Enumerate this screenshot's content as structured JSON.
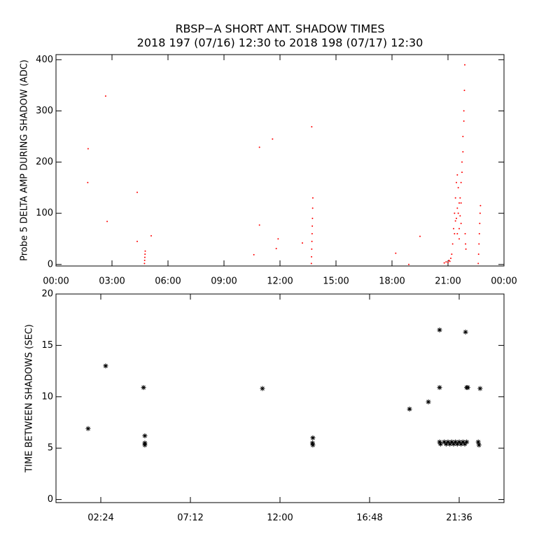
{
  "chart_data": [
    {
      "type": "scatter",
      "title": "RBSP−A SHORT ANT. SHADOW TIMES",
      "subtitle": "2018 197 (07/16) 12:30 to 2018 198 (07/17) 12:30",
      "y_label": "Probe 5 DELTA AMP DURING SHADOW (ADC)",
      "color": "#ff0000",
      "xlim": [
        0,
        24
      ],
      "ylim": [
        -3,
        410
      ],
      "xticks": [
        {
          "value": 0,
          "label": "00:00"
        },
        {
          "value": 3,
          "label": "03:00"
        },
        {
          "value": 6,
          "label": "06:00"
        },
        {
          "value": 9,
          "label": "09:00"
        },
        {
          "value": 12,
          "label": "12:00"
        },
        {
          "value": 15,
          "label": "15:00"
        },
        {
          "value": 18,
          "label": "18:00"
        },
        {
          "value": 21,
          "label": "21:00"
        },
        {
          "value": 24,
          "label": "00:00"
        }
      ],
      "yticks": [
        0,
        100,
        200,
        300,
        400
      ],
      "x": [
        1.72,
        1.7,
        2.66,
        2.74,
        4.35,
        4.35,
        5.1,
        10.6,
        10.9,
        10.9,
        11.6,
        11.9,
        11.8,
        13.2,
        13.7,
        18.2,
        18.9,
        19.5,
        4.74,
        4.75,
        4.76,
        4.77,
        4.78,
        13.68,
        13.69,
        13.7,
        13.71,
        13.72,
        13.73,
        13.74,
        13.75,
        13.76,
        20.8,
        20.9,
        21.0,
        21.05,
        21.1,
        21.15,
        21.2,
        21.25,
        21.3,
        21.35,
        21.4,
        21.45,
        21.5,
        21.55,
        21.6,
        21.65,
        21.7,
        21.45,
        21.5,
        21.55,
        21.6,
        21.65,
        21.7,
        21.75,
        21.8,
        21.85,
        21.88,
        21.9,
        21.8,
        21.85,
        21.75,
        21.7,
        21.92,
        21.94,
        21.96,
        21.35,
        21.4,
        21.5,
        21.6,
        22.62,
        22.64,
        22.66,
        22.68,
        22.7,
        22.72,
        22.74
      ],
      "values": [
        226,
        160,
        329,
        84,
        141,
        45,
        56,
        19,
        77,
        229,
        245,
        50,
        31,
        42,
        269,
        22,
        0,
        55,
        2,
        8,
        14,
        20,
        26,
        2,
        15,
        30,
        45,
        60,
        75,
        90,
        110,
        130,
        3,
        5,
        4,
        8,
        6,
        12,
        20,
        40,
        70,
        100,
        130,
        160,
        175,
        150,
        120,
        95,
        80,
        90,
        110,
        100,
        70,
        130,
        160,
        200,
        250,
        300,
        340,
        390,
        220,
        280,
        180,
        120,
        60,
        40,
        30,
        60,
        85,
        60,
        50,
        2,
        20,
        40,
        60,
        80,
        100,
        115
      ]
    },
    {
      "type": "scatter",
      "y_label": "TIME BETWEEN SHADOWS (SEC)",
      "color": "#000000",
      "xlim": [
        0,
        24
      ],
      "ylim": [
        -0.3,
        20
      ],
      "xticks": [
        {
          "value": 2.4,
          "label": "02:24"
        },
        {
          "value": 7.2,
          "label": "07:12"
        },
        {
          "value": 12,
          "label": "12:00"
        },
        {
          "value": 16.8,
          "label": "16:48"
        },
        {
          "value": 21.6,
          "label": "21:36"
        }
      ],
      "yticks": [
        0,
        5,
        10,
        15,
        20
      ],
      "x": [
        1.72,
        2.66,
        4.69,
        4.76,
        4.76,
        4.76,
        11.06,
        13.76,
        13.74,
        13.76,
        18.94,
        19.95,
        20.55,
        20.55,
        20.55,
        20.8,
        21.0,
        21.2,
        21.4,
        21.6,
        21.8,
        22.0,
        20.6,
        20.9,
        21.1,
        21.3,
        21.5,
        21.7,
        21.9,
        21.94,
        22.0,
        22.06,
        22.62,
        22.66,
        22.72
      ],
      "values": [
        6.9,
        13.0,
        10.9,
        6.2,
        5.5,
        5.3,
        10.8,
        6.0,
        5.5,
        5.3,
        8.8,
        9.5,
        16.5,
        10.9,
        5.6,
        5.6,
        5.6,
        5.6,
        5.6,
        5.6,
        5.6,
        5.6,
        5.4,
        5.4,
        5.4,
        5.4,
        5.4,
        5.4,
        5.4,
        16.3,
        10.9,
        10.9,
        5.6,
        5.3,
        10.8
      ]
    }
  ]
}
